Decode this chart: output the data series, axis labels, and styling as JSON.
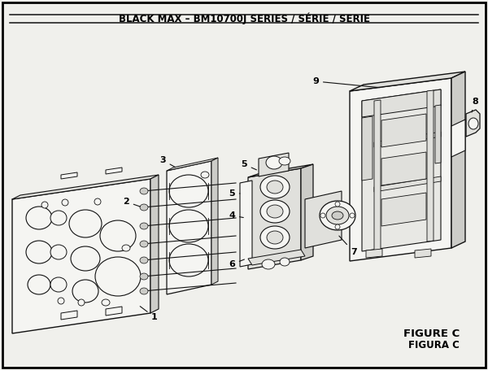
{
  "title": "BLACK MAX – BM10700J SERIES / SÉRIE / SERIE",
  "figure_label": "FIGURE C",
  "figura_label": "FIGURA C",
  "bg_color": "#f0f0ec",
  "border_color": "#000000",
  "line_color": "#111111",
  "title_fontsize": 8.5,
  "label_fontsize": 8,
  "figure_fontsize": 9.5
}
